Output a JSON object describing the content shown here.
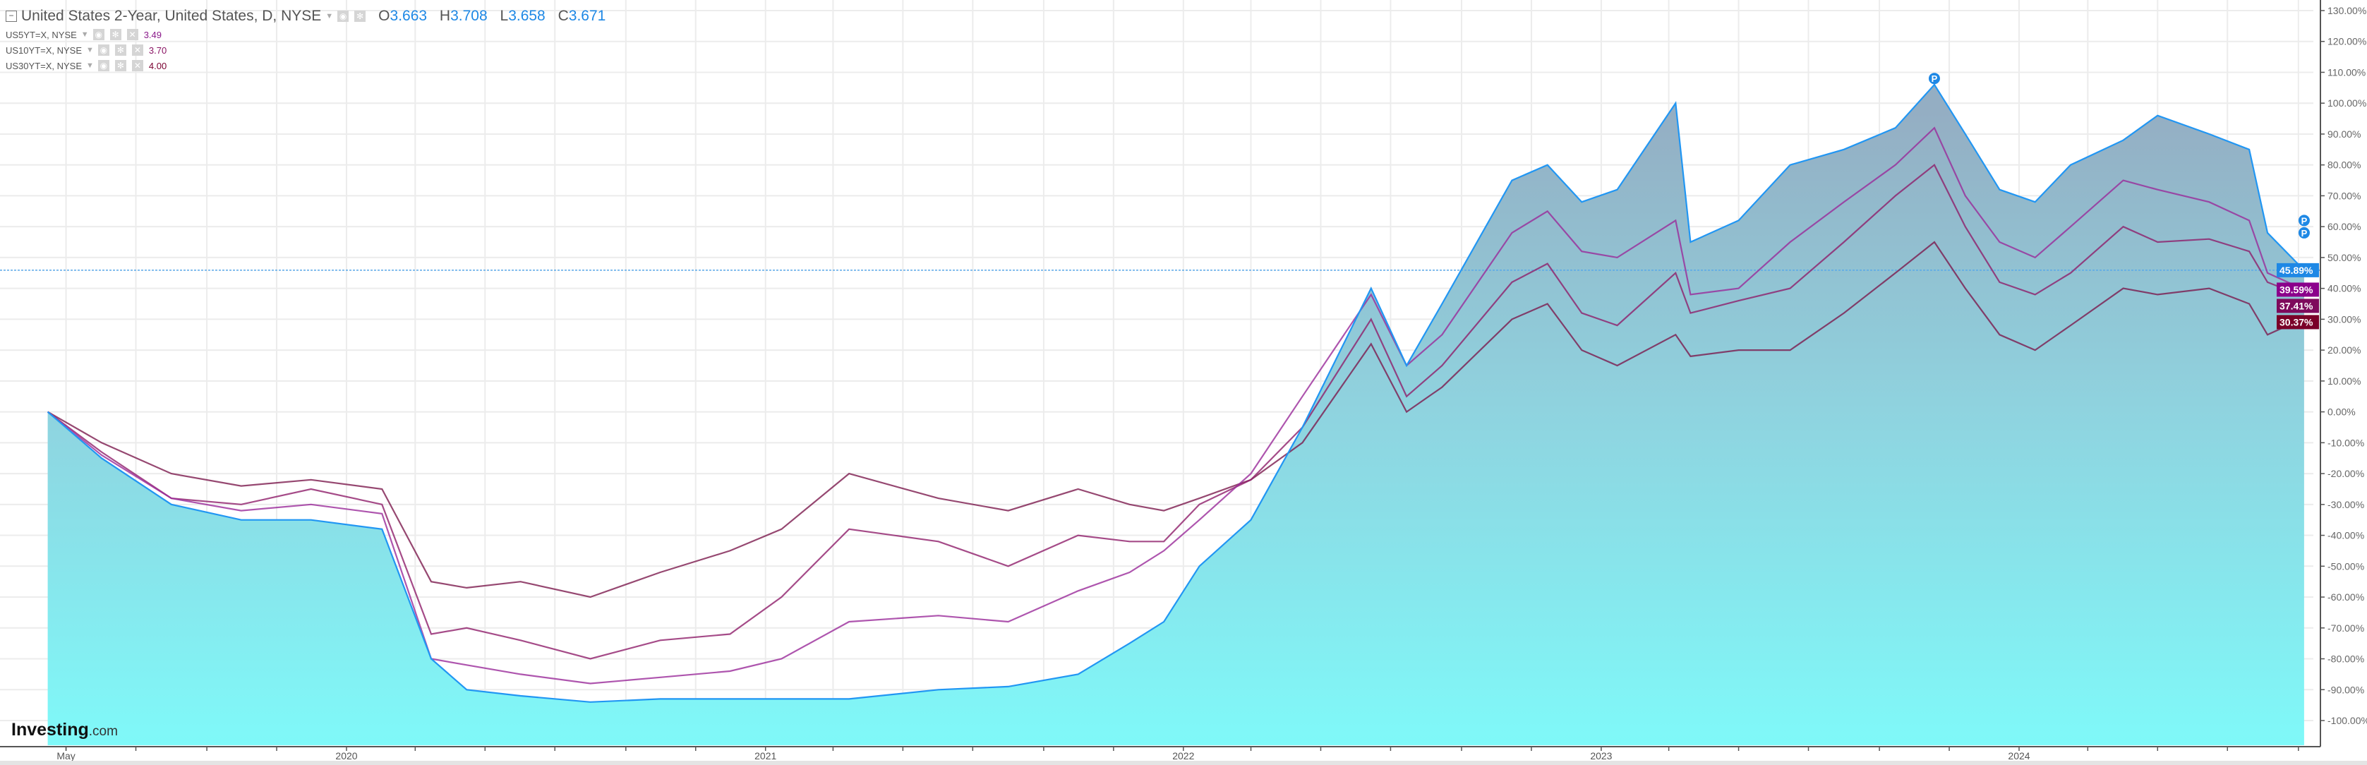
{
  "legend": {
    "main": {
      "label": "United States 2-Year, United States, D, NYSE",
      "o_label": "O",
      "o": "3.663",
      "h_label": "H",
      "h": "3.708",
      "l_label": "L",
      "l": "3.658",
      "c_label": "C",
      "c": "3.671"
    },
    "rows": [
      {
        "label": "US5YT=X, NYSE",
        "value": "3.49",
        "color": "#8b1a8b"
      },
      {
        "label": "US10YT=X, NYSE",
        "value": "3.70",
        "color": "#8a1464"
      },
      {
        "label": "US30YT=X, NYSE",
        "value": "4.00",
        "color": "#7a0030"
      }
    ]
  },
  "logo": {
    "main": "Investing",
    "suffix": ".com"
  },
  "chart_data": {
    "type": "area",
    "yunit": "%",
    "ylim": [
      -100,
      130
    ],
    "yticks": [
      130,
      120,
      110,
      100,
      90,
      80,
      70,
      60,
      50,
      40,
      30,
      20,
      10,
      0,
      -10,
      -20,
      -30,
      -40,
      -50,
      -60,
      -70,
      -80,
      -90,
      -100
    ],
    "ytick_labels": [
      "130.00%",
      "120.00%",
      "110.00%",
      "100.00%",
      "90.00%",
      "80.00%",
      "70.00%",
      "60.00%",
      "50.00%",
      "40.00%",
      "30.00%",
      "20.00%",
      "10.00%",
      "0.00%",
      "-10.00%",
      "-20.00%",
      "-30.00%",
      "-40.00%",
      "-50.00%",
      "-60.00%",
      "-70.00%",
      "-80.00%",
      "-90.00%",
      "-100.00%"
    ],
    "xticks": [
      {
        "date": "2019-05-01",
        "label": "May"
      },
      {
        "date": "2020-01-01",
        "label": "2020"
      },
      {
        "date": "2021-01-01",
        "label": "2021"
      },
      {
        "date": "2022-01-01",
        "label": "2022"
      },
      {
        "date": "2023-01-01",
        "label": "2023"
      },
      {
        "date": "2024-01-01",
        "label": "2024"
      }
    ],
    "grid": true,
    "x": [
      "2019-04-15",
      "2019-06-01",
      "2019-08-01",
      "2019-10-01",
      "2019-12-01",
      "2020-02-01",
      "2020-03-15",
      "2020-04-15",
      "2020-06-01",
      "2020-08-01",
      "2020-10-01",
      "2020-12-01",
      "2021-01-15",
      "2021-03-15",
      "2021-06-01",
      "2021-08-01",
      "2021-10-01",
      "2021-11-15",
      "2021-12-15",
      "2022-01-15",
      "2022-03-01",
      "2022-04-15",
      "2022-06-14",
      "2022-07-15",
      "2022-08-15",
      "2022-10-15",
      "2022-11-15",
      "2022-12-15",
      "2023-01-15",
      "2023-03-07",
      "2023-03-20",
      "2023-05-01",
      "2023-06-15",
      "2023-08-01",
      "2023-09-15",
      "2023-10-19",
      "2023-11-15",
      "2023-12-15",
      "2024-01-15",
      "2024-02-15",
      "2024-04-01",
      "2024-05-01",
      "2024-06-15",
      "2024-07-20",
      "2024-08-05",
      "2024-09-06"
    ],
    "series": [
      {
        "name": "United States 2-Year",
        "color": "#2196f3",
        "fill": true,
        "last_label": "45.89%",
        "values": [
          0,
          -15,
          -30,
          -35,
          -35,
          -38,
          -80,
          -90,
          -92,
          -94,
          -93,
          -93,
          -93,
          -93,
          -90,
          -89,
          -85,
          -75,
          -68,
          -50,
          -35,
          -5,
          40,
          15,
          35,
          75,
          80,
          68,
          72,
          100,
          55,
          62,
          80,
          85,
          92,
          106,
          90,
          72,
          68,
          80,
          88,
          96,
          90,
          85,
          58,
          45.89
        ]
      },
      {
        "name": "US5YT=X, NYSE",
        "color": "#9a2a9a",
        "fill": false,
        "last_label": "39.59%",
        "values": [
          0,
          -14,
          -28,
          -32,
          -30,
          -33,
          -80,
          -82,
          -85,
          -88,
          -86,
          -84,
          -80,
          -68,
          -66,
          -68,
          -58,
          -52,
          -45,
          -35,
          -20,
          5,
          38,
          15,
          25,
          58,
          65,
          52,
          50,
          62,
          38,
          40,
          55,
          68,
          80,
          92,
          70,
          55,
          50,
          60,
          75,
          72,
          68,
          62,
          45,
          39.59
        ]
      },
      {
        "name": "US10YT=X, NYSE",
        "color": "#8e1e6a",
        "fill": false,
        "last_label": "37.41%",
        "values": [
          0,
          -13,
          -28,
          -30,
          -25,
          -30,
          -72,
          -70,
          -74,
          -80,
          -74,
          -72,
          -60,
          -38,
          -42,
          -50,
          -40,
          -42,
          -42,
          -30,
          -22,
          -5,
          30,
          5,
          15,
          42,
          48,
          32,
          28,
          45,
          32,
          36,
          40,
          55,
          70,
          80,
          60,
          42,
          38,
          45,
          60,
          55,
          56,
          52,
          42,
          37.41
        ]
      },
      {
        "name": "US30YT=X, NYSE",
        "color": "#7c1a4e",
        "fill": false,
        "last_label": "30.37%",
        "values": [
          0,
          -10,
          -20,
          -24,
          -22,
          -25,
          -55,
          -57,
          -55,
          -60,
          -52,
          -45,
          -38,
          -20,
          -28,
          -32,
          -25,
          -30,
          -32,
          -28,
          -22,
          -10,
          22,
          0,
          8,
          30,
          35,
          20,
          15,
          25,
          18,
          20,
          20,
          32,
          45,
          55,
          40,
          25,
          20,
          28,
          40,
          38,
          40,
          35,
          25,
          30.37
        ]
      }
    ],
    "current_line_value": 45.89
  },
  "colors": {
    "axis": "#555555",
    "grid": "#ececec",
    "fill_top": "#94aec3",
    "fill_bottom": "#7ff9f9",
    "marker": "#1e88e5"
  },
  "markers": [
    {
      "series": "United States 2-Year",
      "date": "2023-10-19",
      "value": 108,
      "label": "P"
    },
    {
      "series": "United States 2-Year",
      "date": "2024-09-06",
      "value": 62,
      "label": "P"
    },
    {
      "series": "United States 2-Year",
      "date": "2024-09-06",
      "value": 58,
      "label": "P"
    }
  ]
}
